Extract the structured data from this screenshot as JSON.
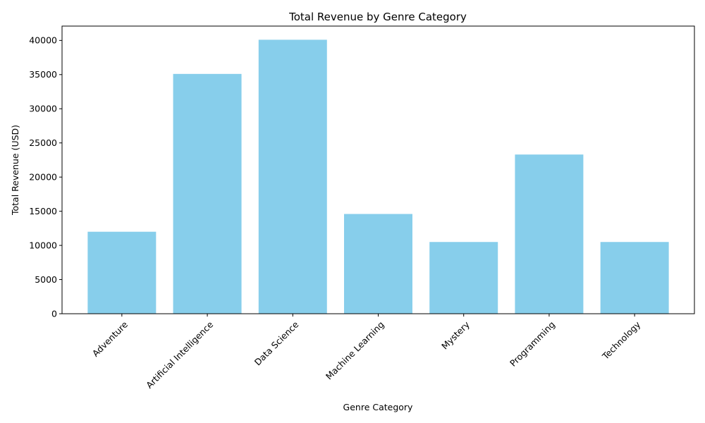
{
  "chart_data": {
    "type": "bar",
    "title": "Total Revenue by Genre Category",
    "xlabel": "Genre Category",
    "ylabel": "Total Revenue (USD)",
    "categories": [
      "Adventure",
      "Artificial Intelligence",
      "Data Science",
      "Machine Learning",
      "Mystery",
      "Programming",
      "Technology"
    ],
    "values": [
      12000,
      35100,
      40100,
      14600,
      10500,
      23300,
      10500
    ],
    "ylim": [
      0,
      42100
    ],
    "yticks": [
      0,
      5000,
      10000,
      15000,
      20000,
      25000,
      30000,
      35000,
      40000
    ],
    "bar_color": "#87ceeb",
    "grid": false
  }
}
